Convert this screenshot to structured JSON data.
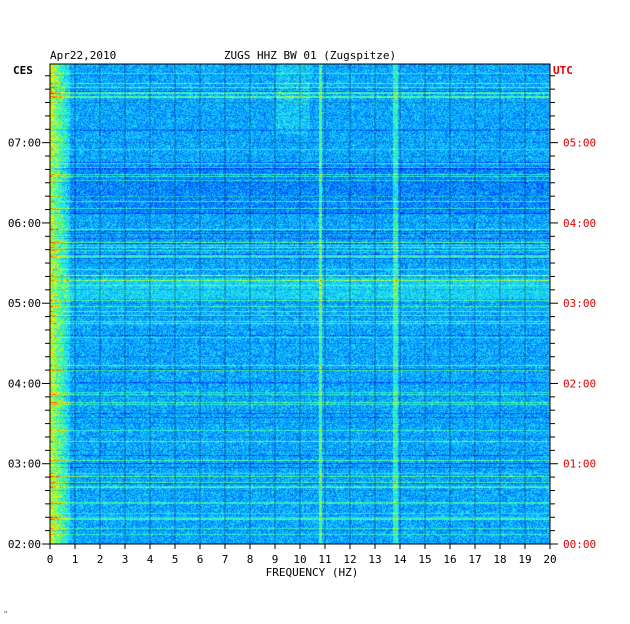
{
  "header": {
    "date": "Apr22,2010",
    "title": "ZUGS HHZ BW 01 (Zugspitze)",
    "left_zone": "CES",
    "right_zone": "UTC"
  },
  "footer_mark": "\"",
  "colors": {
    "utc_labels": "#e00000",
    "axis": "#000000",
    "grid": "#000000"
  },
  "chart_data": {
    "type": "heatmap",
    "title": "ZUGS HHZ BW 01 (Zugspitze)",
    "xlabel": "FREQUENCY (HZ)",
    "xlim": [
      0,
      20
    ],
    "x_ticks": [
      "0",
      "1",
      "2",
      "3",
      "4",
      "5",
      "6",
      "7",
      "8",
      "9",
      "10",
      "11",
      "12",
      "13",
      "14",
      "15",
      "16",
      "17",
      "18",
      "19",
      "20"
    ],
    "left_time_ticks": [
      "02:00",
      "03:00",
      "04:00",
      "05:00",
      "06:00",
      "07:00"
    ],
    "right_time_ticks": [
      "00:00",
      "01:00",
      "02:00",
      "03:00",
      "04:00",
      "05:00"
    ],
    "time_range_local_hours": [
      2.0,
      7.98
    ],
    "colormap": [
      "#0000a0",
      "#0020ff",
      "#0090ff",
      "#20e0ff",
      "#40ff90",
      "#ffff00",
      "#ff8000",
      "#ff0000"
    ],
    "grid": true,
    "strong_features": [
      {
        "freq_hz": 10.8,
        "note": "persistent vertical line"
      },
      {
        "freq_hz": 13.8,
        "note": "vertical band"
      },
      {
        "freq_hz": 0.3,
        "note": "low-frequency energy"
      }
    ]
  }
}
